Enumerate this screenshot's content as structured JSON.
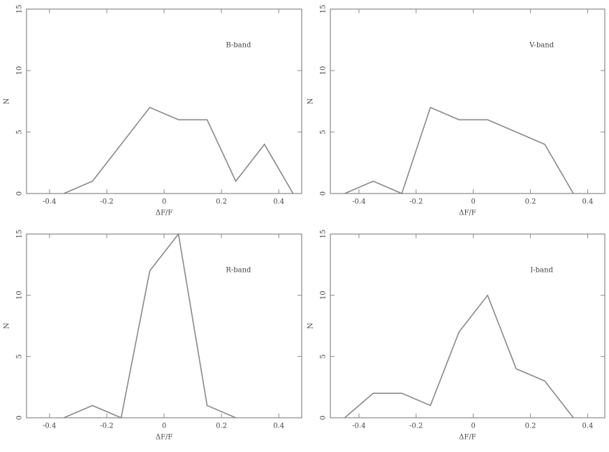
{
  "chart_data": [
    {
      "type": "line",
      "annotation": "B-band",
      "xlabel": "ΔF/F",
      "ylabel": "N",
      "color": "#888888",
      "x": [
        -0.35,
        -0.25,
        -0.15,
        -0.05,
        0.05,
        0.15,
        0.25,
        0.35,
        0.45
      ],
      "values": [
        0,
        1,
        4,
        7,
        6,
        6,
        1,
        4,
        0
      ],
      "xlim": [
        -0.48,
        0.48
      ],
      "ylim": [
        0,
        15
      ],
      "xticks": [
        -0.4,
        -0.2,
        0,
        0.2,
        0.4
      ],
      "yticks": [
        0,
        5,
        10,
        15
      ]
    },
    {
      "type": "line",
      "annotation": "V-band",
      "xlabel": "ΔF/F",
      "ylabel": "N",
      "color": "#888888",
      "x": [
        -0.45,
        -0.35,
        -0.25,
        -0.15,
        -0.05,
        0.05,
        0.15,
        0.25,
        0.35
      ],
      "values": [
        0,
        1,
        0,
        7,
        6,
        6,
        5,
        4,
        0
      ],
      "xlim": [
        -0.5,
        0.46
      ],
      "ylim": [
        0,
        15
      ],
      "xticks": [
        -0.4,
        -0.2,
        0,
        0.2,
        0.4
      ],
      "yticks": [
        0,
        5,
        10,
        15
      ]
    },
    {
      "type": "line",
      "annotation": "R-band",
      "xlabel": "ΔF/F",
      "ylabel": "N",
      "color": "#888888",
      "x": [
        -0.35,
        -0.25,
        -0.15,
        -0.05,
        0.05,
        0.15,
        0.25
      ],
      "values": [
        0,
        1,
        0,
        12,
        15,
        1,
        0
      ],
      "xlim": [
        -0.48,
        0.48
      ],
      "ylim": [
        0,
        15
      ],
      "xticks": [
        -0.4,
        -0.2,
        0,
        0.2,
        0.4
      ],
      "yticks": [
        0,
        5,
        10,
        15
      ]
    },
    {
      "type": "line",
      "annotation": "I-band",
      "xlabel": "ΔF/F",
      "ylabel": "N",
      "color": "#888888",
      "x": [
        -0.45,
        -0.35,
        -0.25,
        -0.15,
        -0.05,
        0.05,
        0.15,
        0.25,
        0.35
      ],
      "values": [
        0,
        2,
        2,
        1,
        7,
        10,
        4,
        3,
        0
      ],
      "xlim": [
        -0.5,
        0.46
      ],
      "ylim": [
        0,
        15
      ],
      "xticks": [
        -0.4,
        -0.2,
        0,
        0.2,
        0.4
      ],
      "yticks": [
        0,
        5,
        10,
        15
      ]
    }
  ]
}
